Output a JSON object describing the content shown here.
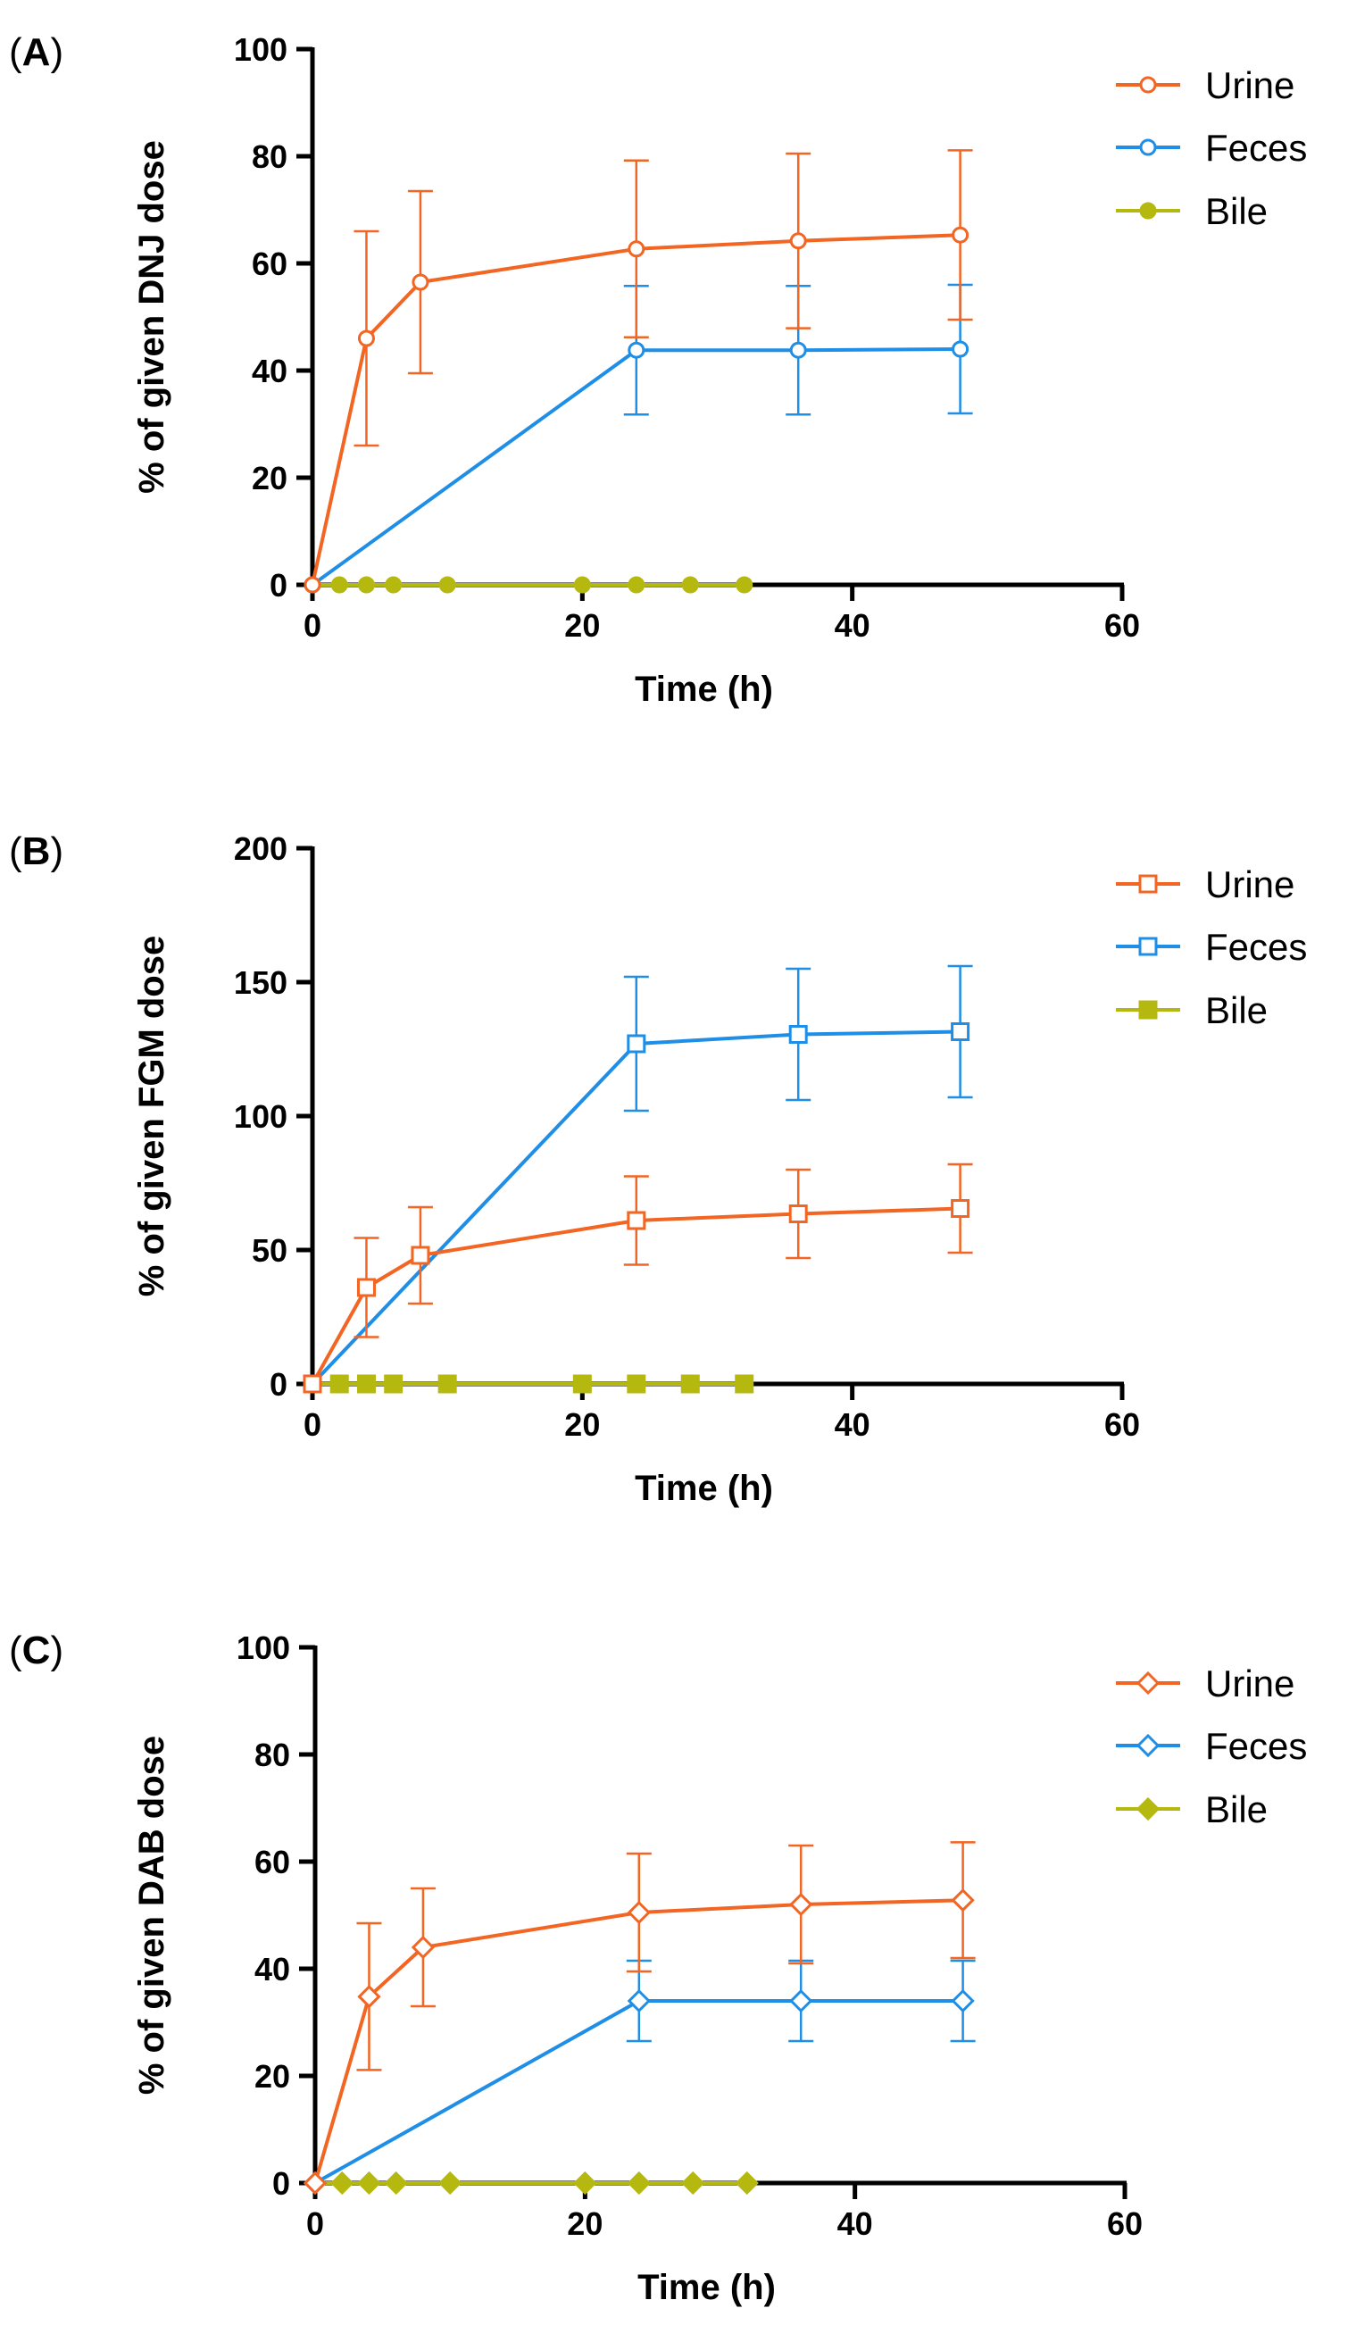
{
  "chart_data": [
    {
      "type": "line",
      "panel_label_letter": "A",
      "xlabel": "Time (h)",
      "ylabel": "% of given DNJ dose",
      "xlim": [
        0,
        60
      ],
      "ylim": [
        0,
        100
      ],
      "xticks": [
        0,
        20,
        40,
        60
      ],
      "yticks": [
        0,
        20,
        40,
        60,
        80,
        100
      ],
      "marker": "circle",
      "legend_position": "top-right",
      "series": [
        {
          "name": "Urine",
          "color": "#f26522",
          "filled": false,
          "x": [
            0,
            4,
            8,
            24,
            36,
            48
          ],
          "y": [
            0,
            46,
            56.5,
            62.7,
            64.2,
            65.3
          ],
          "err": [
            0,
            20,
            17,
            16.5,
            16.3,
            15.8
          ]
        },
        {
          "name": "Feces",
          "color": "#1f8ee6",
          "filled": false,
          "x": [
            0,
            24,
            36,
            48
          ],
          "y": [
            0,
            43.8,
            43.8,
            44
          ],
          "err": [
            0,
            12,
            12,
            12
          ]
        },
        {
          "name": "Bile",
          "color": "#b5b80f",
          "filled": true,
          "x": [
            0,
            2,
            4,
            6,
            10,
            20,
            24,
            28,
            32
          ],
          "y": [
            0,
            0,
            0,
            0,
            0,
            0,
            0,
            0,
            0
          ],
          "err": []
        }
      ]
    },
    {
      "type": "line",
      "panel_label_letter": "B",
      "xlabel": "Time (h)",
      "ylabel": "% of given FGM dose",
      "xlim": [
        0,
        60
      ],
      "ylim": [
        0,
        200
      ],
      "xticks": [
        0,
        20,
        40,
        60
      ],
      "yticks": [
        0,
        50,
        100,
        150,
        200
      ],
      "marker": "square",
      "legend_position": "top-right",
      "series": [
        {
          "name": "Urine",
          "color": "#f26522",
          "filled": false,
          "x": [
            0,
            4,
            8,
            24,
            36,
            48
          ],
          "y": [
            0,
            36,
            48,
            61,
            63.5,
            65.5
          ],
          "err": [
            0,
            18.5,
            18,
            16.5,
            16.5,
            16.5
          ]
        },
        {
          "name": "Feces",
          "color": "#1f8ee6",
          "filled": false,
          "x": [
            0,
            24,
            36,
            48
          ],
          "y": [
            0,
            127,
            130.5,
            131.5
          ],
          "err": [
            0,
            25,
            24.5,
            24.5
          ]
        },
        {
          "name": "Bile",
          "color": "#b5b80f",
          "filled": true,
          "x": [
            0,
            2,
            4,
            6,
            10,
            20,
            24,
            28,
            32
          ],
          "y": [
            0,
            0,
            0,
            0,
            0,
            0,
            0,
            0,
            0
          ],
          "err": []
        }
      ]
    },
    {
      "type": "line",
      "panel_label_letter": "C",
      "xlabel": "Time (h)",
      "ylabel": "% of given DAB dose",
      "xlim": [
        0,
        60
      ],
      "ylim": [
        0,
        100
      ],
      "xticks": [
        0,
        20,
        40,
        60
      ],
      "yticks": [
        0,
        20,
        40,
        60,
        80,
        100
      ],
      "marker": "diamond",
      "legend_position": "top-right",
      "series": [
        {
          "name": "Urine",
          "color": "#f26522",
          "filled": false,
          "x": [
            0,
            4,
            8,
            24,
            36,
            48
          ],
          "y": [
            0,
            34.8,
            44,
            50.5,
            52,
            52.8
          ],
          "err": [
            0,
            13.7,
            11,
            11,
            11,
            10.8
          ]
        },
        {
          "name": "Feces",
          "color": "#1f8ee6",
          "filled": false,
          "x": [
            0,
            24,
            36,
            48
          ],
          "y": [
            0,
            34,
            34,
            34
          ],
          "err": [
            0,
            7.5,
            7.5,
            7.5
          ]
        },
        {
          "name": "Bile",
          "color": "#b5b80f",
          "filled": true,
          "x": [
            0,
            2,
            4,
            6,
            10,
            20,
            24,
            28,
            32
          ],
          "y": [
            0,
            0,
            0,
            0,
            0,
            0,
            0,
            0,
            0
          ],
          "err": []
        }
      ]
    }
  ]
}
